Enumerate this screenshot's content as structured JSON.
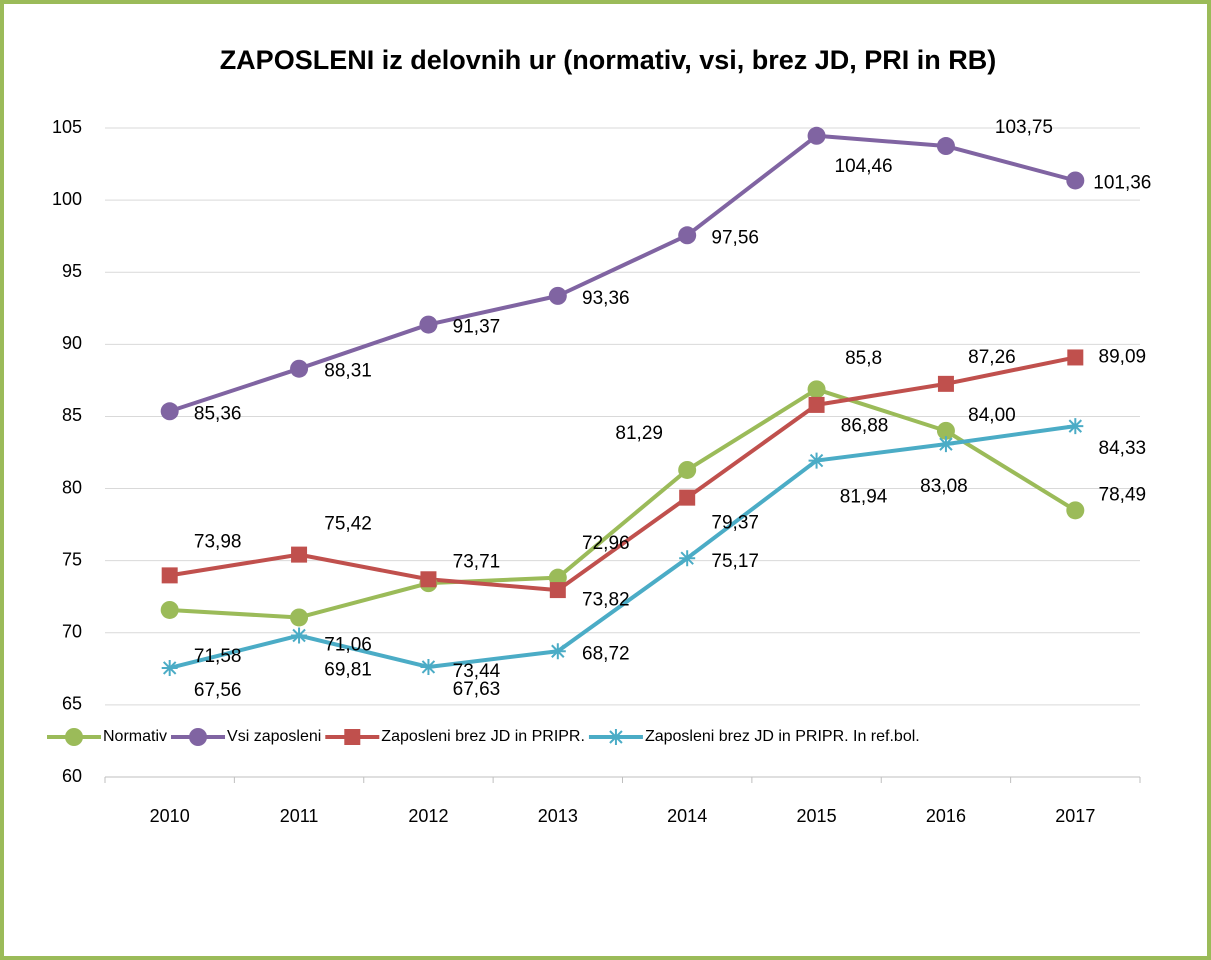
{
  "chart_data": {
    "type": "line",
    "title": "ZAPOSLENI iz delovnih ur (normativ, vsi, brez JD, PRI in RB)",
    "categories": [
      "2010",
      "2011",
      "2012",
      "2013",
      "2014",
      "2015",
      "2016",
      "2017"
    ],
    "ylim": [
      60,
      105
    ],
    "yticks": [
      60,
      65,
      70,
      75,
      80,
      85,
      90,
      95,
      100,
      105
    ],
    "grid": true,
    "legend": "bottom",
    "series": [
      {
        "name": "Normativ",
        "color": "#9bbb59",
        "marker": "circle",
        "values": [
          71.58,
          71.06,
          73.44,
          73.82,
          81.29,
          86.88,
          84.0,
          78.49
        ],
        "value_labels": [
          "71,58",
          "71,06",
          "73,44",
          "73,82",
          "81,29",
          "86,88",
          "84,00",
          "78,49"
        ]
      },
      {
        "name": "Vsi zaposleni",
        "color": "#8064a2",
        "marker": "circle",
        "values": [
          85.36,
          88.31,
          91.37,
          93.36,
          97.56,
          104.46,
          103.75,
          101.36
        ],
        "value_labels": [
          "85,36",
          "88,31",
          "91,37",
          "93,36",
          "97,56",
          "104,46",
          "103,75",
          "101,36"
        ]
      },
      {
        "name": "Zaposleni brez JD in PRIPR.",
        "color": "#c0504d",
        "marker": "square",
        "values": [
          73.98,
          75.42,
          73.71,
          72.96,
          79.37,
          85.8,
          87.26,
          89.09
        ],
        "value_labels": [
          "73,98",
          "75,42",
          "73,71",
          "72,96",
          "79,37",
          "85,8",
          "87,26",
          "89,09"
        ]
      },
      {
        "name": "Zaposleni brez JD in PRIPR. In ref.bol.",
        "color": "#4bacc6",
        "marker": "star",
        "values": [
          67.56,
          69.81,
          67.63,
          68.72,
          75.17,
          81.94,
          83.08,
          84.33
        ],
        "value_labels": [
          "67,56",
          "69,81",
          "67,63",
          "68,72",
          "75,17",
          "81,94",
          "83,08",
          "84,33"
        ]
      }
    ]
  }
}
